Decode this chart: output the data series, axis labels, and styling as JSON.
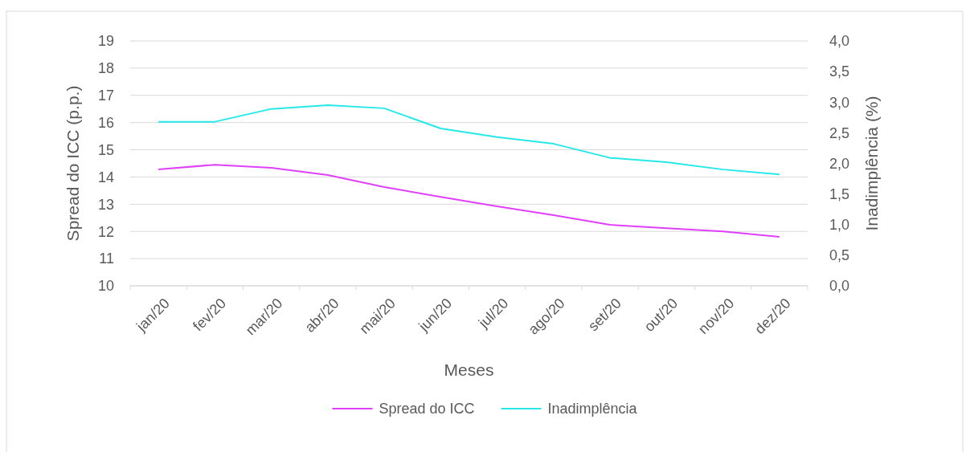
{
  "chart_data": {
    "type": "line",
    "xlabel": "Meses",
    "ylabel": "Spread do ICC (p.p.)",
    "y2label": "Inadimplência (%)",
    "categories": [
      "jan/20",
      "fev/20",
      "mar/20",
      "abr/20",
      "mai/20",
      "jun/20",
      "jul/20",
      "ago/20",
      "set/20",
      "out/20",
      "nov/20",
      "dez/20"
    ],
    "series": [
      {
        "name": "Spread do ICC",
        "color": "#e040fb",
        "values": [
          14.28,
          14.45,
          14.34,
          14.07,
          13.63,
          13.27,
          12.92,
          12.6,
          12.24,
          12.12,
          12.0,
          11.8
        ]
      },
      {
        "name": "Inadimplência",
        "color": "#26e8e8",
        "axis": "y2",
        "values": [
          2.68,
          2.68,
          2.89,
          2.95,
          2.9,
          2.57,
          2.43,
          2.32,
          2.09,
          2.02,
          1.9,
          1.82
        ]
      }
    ],
    "ylim": [
      10,
      19
    ],
    "yticks": [
      10,
      11,
      12,
      13,
      14,
      15,
      16,
      17,
      18,
      19
    ],
    "y2lim": [
      0,
      4
    ],
    "y2ticks": [
      {
        "value": 0,
        "label": "0,0"
      },
      {
        "value": 0.5,
        "label": "0,5"
      },
      {
        "value": 1,
        "label": "1,0"
      },
      {
        "value": 1.5,
        "label": "1,5"
      },
      {
        "value": 2,
        "label": "2,0"
      },
      {
        "value": 2.5,
        "label": "2,5"
      },
      {
        "value": 3,
        "label": "3,0"
      },
      {
        "value": 3.5,
        "label": "3,5"
      },
      {
        "value": 4,
        "label": "4,0"
      }
    ],
    "grid": "y",
    "legend": "bottom",
    "marker": "none",
    "line_style": "solid"
  }
}
